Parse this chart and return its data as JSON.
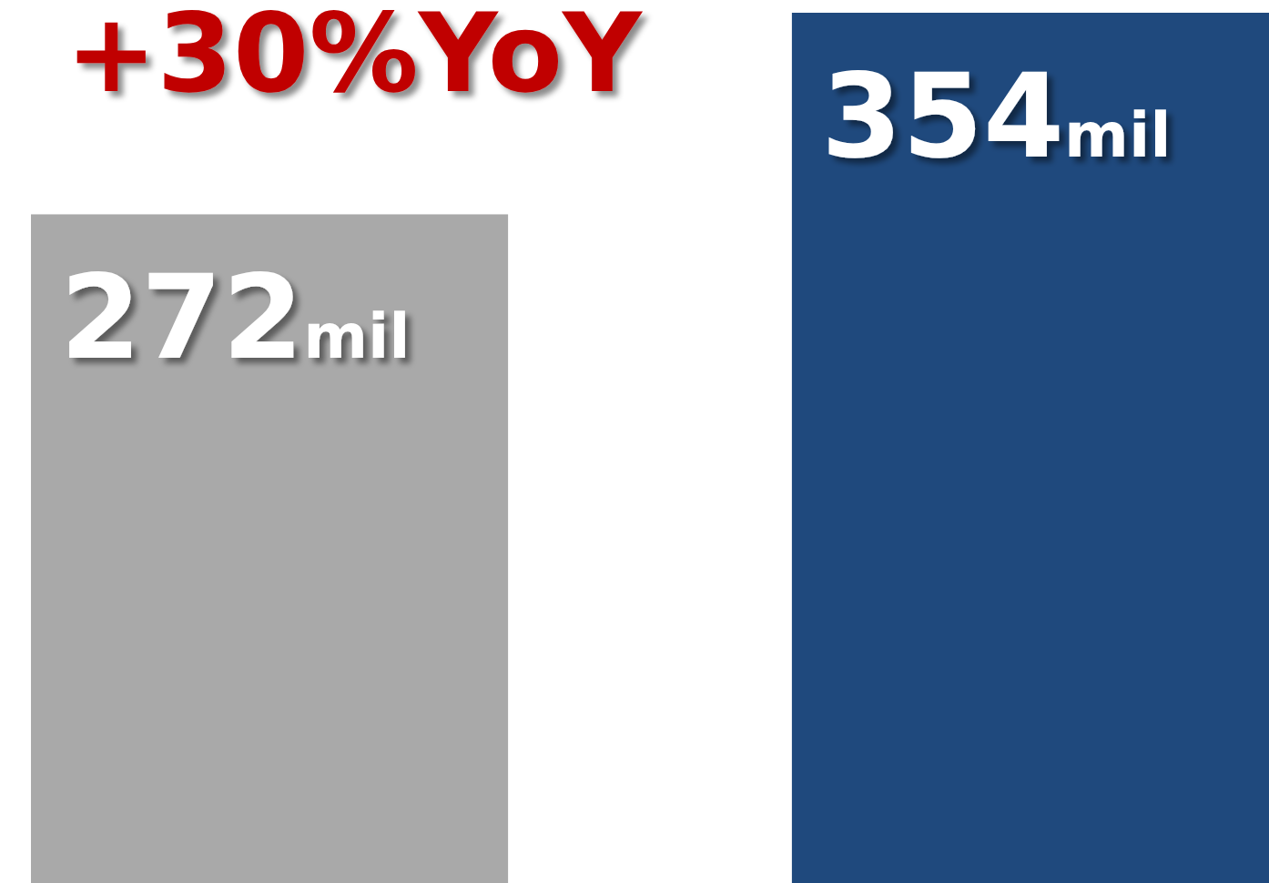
{
  "chart_data": {
    "type": "bar",
    "title": "+30%YoY",
    "categories": [
      null,
      null
    ],
    "values": [
      272,
      354
    ],
    "colors": [
      "#a9a9a9",
      "#1f497d"
    ],
    "value_labels": [
      "272mil",
      "354mil"
    ],
    "ylim": [
      0,
      354
    ]
  }
}
